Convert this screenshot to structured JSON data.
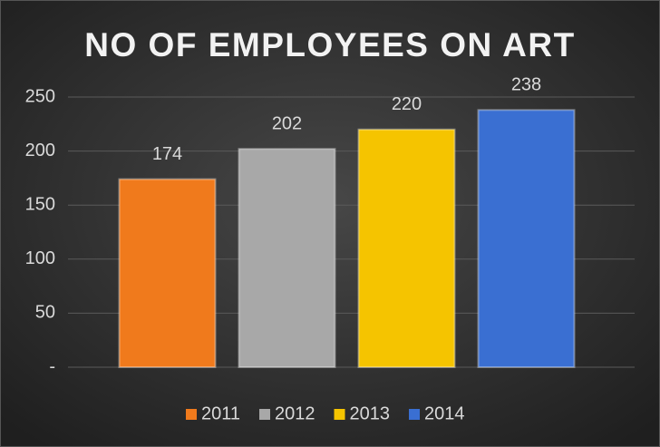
{
  "chart_data": {
    "type": "bar",
    "title": "NO OF EMPLOYEES ON ART",
    "categories": [
      null
    ],
    "series": [
      {
        "name": "2011",
        "color": "#f07a1c",
        "values": [
          174
        ]
      },
      {
        "name": "2012",
        "color": "#a8a8a8",
        "values": [
          202
        ]
      },
      {
        "name": "2013",
        "color": "#f5c400",
        "values": [
          220
        ]
      },
      {
        "name": "2014",
        "color": "#3a6fd2",
        "values": [
          238
        ]
      }
    ],
    "ylim": [
      0,
      250
    ],
    "yticks": [
      {
        "value": 0,
        "label": "-"
      },
      50,
      100,
      150,
      200,
      250
    ],
    "grid": true,
    "legend": "bottom"
  }
}
